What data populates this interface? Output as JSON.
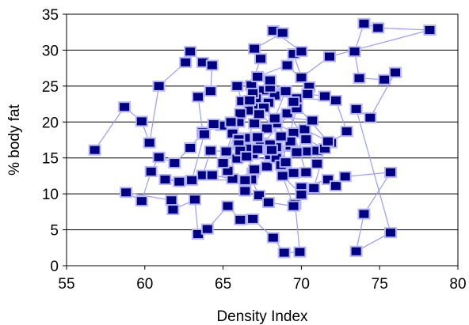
{
  "chart_data": {
    "type": "scatter",
    "title": "",
    "xlabel": "Density Index",
    "ylabel": "% body fat",
    "xlim": [
      55,
      80
    ],
    "ylim": [
      0,
      35
    ],
    "xticks": [
      55,
      60,
      65,
      70,
      75,
      80
    ],
    "yticks": [
      0,
      5,
      10,
      15,
      20,
      25,
      30,
      35
    ],
    "x_tick_labels": [
      "55",
      "60",
      "65",
      "70",
      "75",
      "80"
    ],
    "y_tick_labels": [
      "0",
      "5",
      "10",
      "15",
      "20",
      "25",
      "30",
      "35"
    ],
    "grid": "y-major",
    "connected": true,
    "legend": "none",
    "colors": {
      "marker_fill": "#000080",
      "marker_edge": "#b4b4ff",
      "line": "#9999ff",
      "gridline": "#000000",
      "background": "#ffffff"
    },
    "series": [
      {
        "points": [
          [
            56.8,
            16.1
          ],
          [
            58.7,
            22.1
          ],
          [
            59.8,
            20.1
          ],
          [
            60.3,
            17.1
          ],
          [
            60.9,
            25.0
          ],
          [
            62.6,
            28.3
          ],
          [
            62.9,
            29.8
          ],
          [
            63.7,
            28.3
          ],
          [
            64.3,
            27.9
          ],
          [
            64.2,
            24.3
          ],
          [
            63.4,
            23.5
          ],
          [
            63.7,
            18.6
          ],
          [
            62.9,
            16.4
          ],
          [
            61.9,
            14.3
          ],
          [
            60.9,
            15.1
          ],
          [
            60.4,
            13.1
          ],
          [
            59.8,
            9.0
          ],
          [
            58.8,
            10.2
          ],
          [
            61.7,
            9.1
          ],
          [
            61.8,
            7.8
          ],
          [
            63.2,
            9.2
          ],
          [
            63.4,
            4.4
          ],
          [
            64.0,
            5.1
          ],
          [
            65.3,
            8.3
          ],
          [
            66.1,
            6.4
          ],
          [
            66.9,
            6.5
          ],
          [
            68.2,
            3.9
          ],
          [
            68.9,
            1.8
          ],
          [
            69.9,
            1.9
          ],
          [
            69.6,
            8.6
          ],
          [
            70.0,
            10.9
          ],
          [
            71.7,
            12.0
          ],
          [
            72.2,
            11.1
          ],
          [
            72.8,
            12.4
          ],
          [
            75.7,
            13.0
          ],
          [
            74.0,
            7.2
          ],
          [
            73.5,
            2.0
          ],
          [
            75.7,
            4.6
          ],
          [
            73.5,
            21.8
          ],
          [
            74.4,
            20.6
          ],
          [
            76.0,
            26.9
          ],
          [
            75.3,
            25.9
          ],
          [
            73.7,
            26.1
          ],
          [
            73.4,
            29.8
          ],
          [
            74.0,
            33.7
          ],
          [
            74.9,
            33.1
          ],
          [
            78.2,
            32.8
          ],
          [
            71.8,
            29.1
          ],
          [
            70.0,
            26.2
          ],
          [
            69.5,
            29.5
          ],
          [
            70.0,
            29.8
          ],
          [
            68.2,
            32.7
          ],
          [
            68.8,
            32.4
          ],
          [
            67.0,
            30.2
          ],
          [
            67.4,
            28.8
          ],
          [
            66.8,
            25.1
          ],
          [
            67.6,
            24.4
          ],
          [
            68.3,
            23.7
          ],
          [
            69.7,
            23.3
          ],
          [
            72.2,
            23.0
          ],
          [
            72.9,
            18.7
          ],
          [
            71.9,
            17.1
          ],
          [
            71.0,
            16.0
          ],
          [
            71.0,
            14.2
          ],
          [
            70.3,
            15.9
          ],
          [
            69.3,
            16.7
          ],
          [
            68.4,
            16.5
          ],
          [
            68.0,
            15.4
          ],
          [
            67.4,
            17.1
          ],
          [
            66.4,
            17.8
          ],
          [
            65.6,
            18.4
          ],
          [
            64.9,
            19.5
          ],
          [
            66.0,
            20.0
          ],
          [
            66.7,
            21.6
          ],
          [
            67.3,
            22.4
          ],
          [
            66.1,
            21.2
          ],
          [
            65.2,
            15.9
          ],
          [
            64.2,
            16.0
          ],
          [
            63.7,
            12.6
          ],
          [
            64.3,
            12.6
          ],
          [
            65.6,
            12.1
          ],
          [
            66.9,
            12.9
          ],
          [
            67.8,
            13.8
          ],
          [
            68.4,
            15.0
          ],
          [
            69.5,
            12.9
          ],
          [
            70.3,
            13.0
          ],
          [
            69.5,
            18.5
          ],
          [
            68.4,
            19.8
          ],
          [
            67.8,
            19.1
          ],
          [
            66.9,
            15.5
          ],
          [
            65.9,
            14.9
          ],
          [
            65.3,
            13.2
          ],
          [
            66.4,
            10.4
          ],
          [
            66.8,
            12.0
          ],
          [
            67.3,
            9.8
          ],
          [
            67.9,
            8.8
          ],
          [
            69.5,
            8.3
          ],
          [
            68.8,
            12.5
          ],
          [
            70.0,
            9.9
          ],
          [
            70.8,
            10.8
          ],
          [
            71.5,
            16.3
          ],
          [
            70.3,
            17.6
          ],
          [
            69.1,
            21.2
          ],
          [
            68.3,
            20.5
          ],
          [
            69.0,
            24.3
          ],
          [
            68.0,
            24.8
          ],
          [
            67.1,
            23.3
          ],
          [
            66.2,
            22.9
          ],
          [
            65.9,
            25.0
          ],
          [
            67.2,
            26.3
          ],
          [
            69.1,
            27.9
          ],
          [
            70.5,
            24.9
          ],
          [
            69.7,
            21.9
          ],
          [
            68.7,
            14.0
          ],
          [
            68.0,
            16.9
          ],
          [
            66.6,
            16.3
          ],
          [
            66.0,
            17.6
          ],
          [
            65.5,
            20.0
          ],
          [
            64.4,
            19.7
          ],
          [
            63.8,
            18.3
          ],
          [
            63.0,
            11.9
          ],
          [
            62.2,
            11.7
          ],
          [
            61.3,
            12.0
          ],
          [
            66.4,
            11.9
          ],
          [
            67.0,
            13.4
          ],
          [
            66.0,
            16.9
          ],
          [
            67.2,
            17.9
          ],
          [
            65.0,
            14.3
          ],
          [
            66.9,
            24.0
          ],
          [
            67.9,
            22.7
          ],
          [
            68.0,
            25.8
          ],
          [
            69.5,
            22.8
          ],
          [
            71.7,
            17.3
          ],
          [
            70.2,
            19.0
          ],
          [
            69.3,
            17.3
          ],
          [
            67.6,
            22.0
          ],
          [
            67.0,
            19.8
          ],
          [
            66.1,
            16.0
          ],
          [
            68.1,
            16.1
          ],
          [
            69.7,
            15.8
          ],
          [
            70.7,
            20.2
          ],
          [
            67.3,
            21.1
          ],
          [
            66.7,
            23.0
          ],
          [
            68.7,
            18.0
          ],
          [
            69.0,
            14.4
          ],
          [
            66.5,
            15.2
          ],
          [
            67.2,
            16.2
          ],
          [
            70.4,
            23.9
          ],
          [
            71.5,
            23.6
          ]
        ]
      }
    ]
  }
}
